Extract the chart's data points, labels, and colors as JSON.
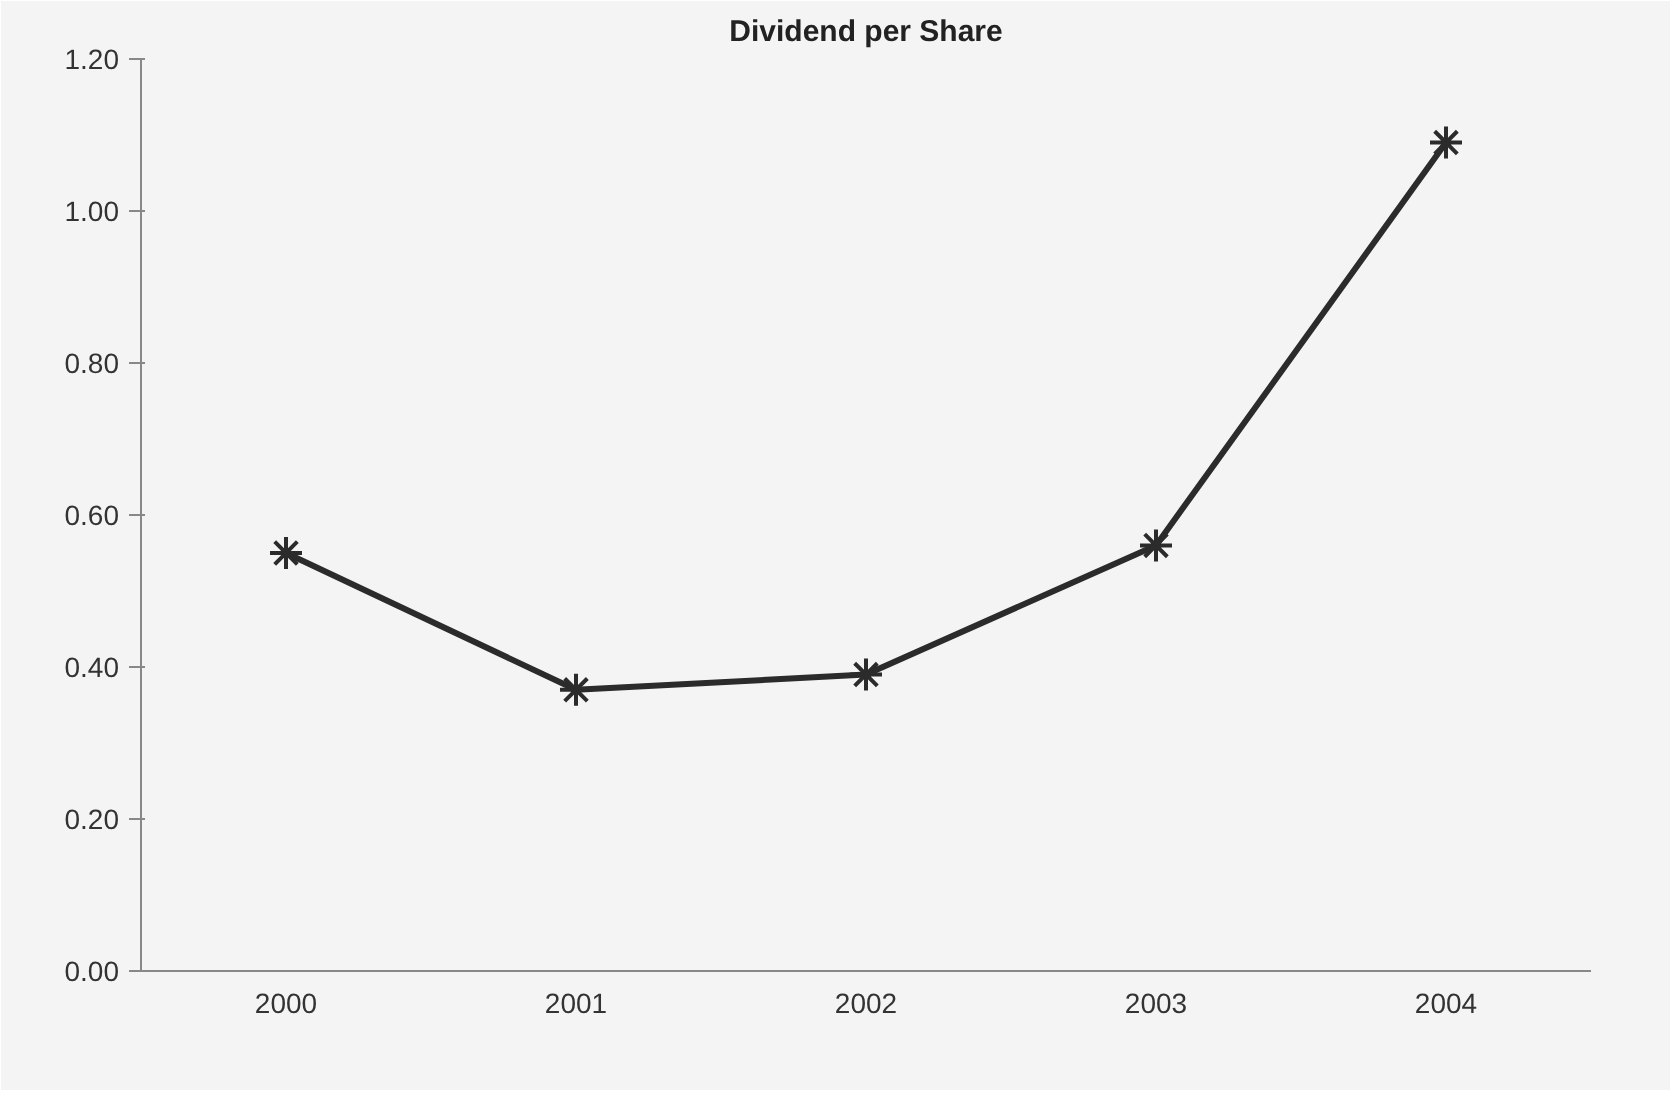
{
  "chart_data": {
    "type": "line",
    "title": "Dividend per Share",
    "categories": [
      "2000",
      "2001",
      "2002",
      "2003",
      "2004"
    ],
    "series": [
      {
        "color": "#2b2b2b",
        "values": [
          0.55,
          0.37,
          0.39,
          0.56,
          1.09
        ]
      }
    ],
    "ylim": [
      0,
      1.2
    ],
    "yticks": [
      {
        "value": 0,
        "label": "0.00"
      },
      {
        "value": 0.2,
        "label": "0.20"
      },
      {
        "value": 0.4,
        "label": "0.40"
      },
      {
        "value": 0.6,
        "label": "0.60"
      },
      {
        "value": 0.8,
        "label": "0.80"
      },
      {
        "value": 1.0,
        "label": "1.00"
      },
      {
        "value": 1.2,
        "label": "1.20"
      }
    ],
    "grid": false,
    "marker": "cross",
    "line_style": "solid"
  }
}
